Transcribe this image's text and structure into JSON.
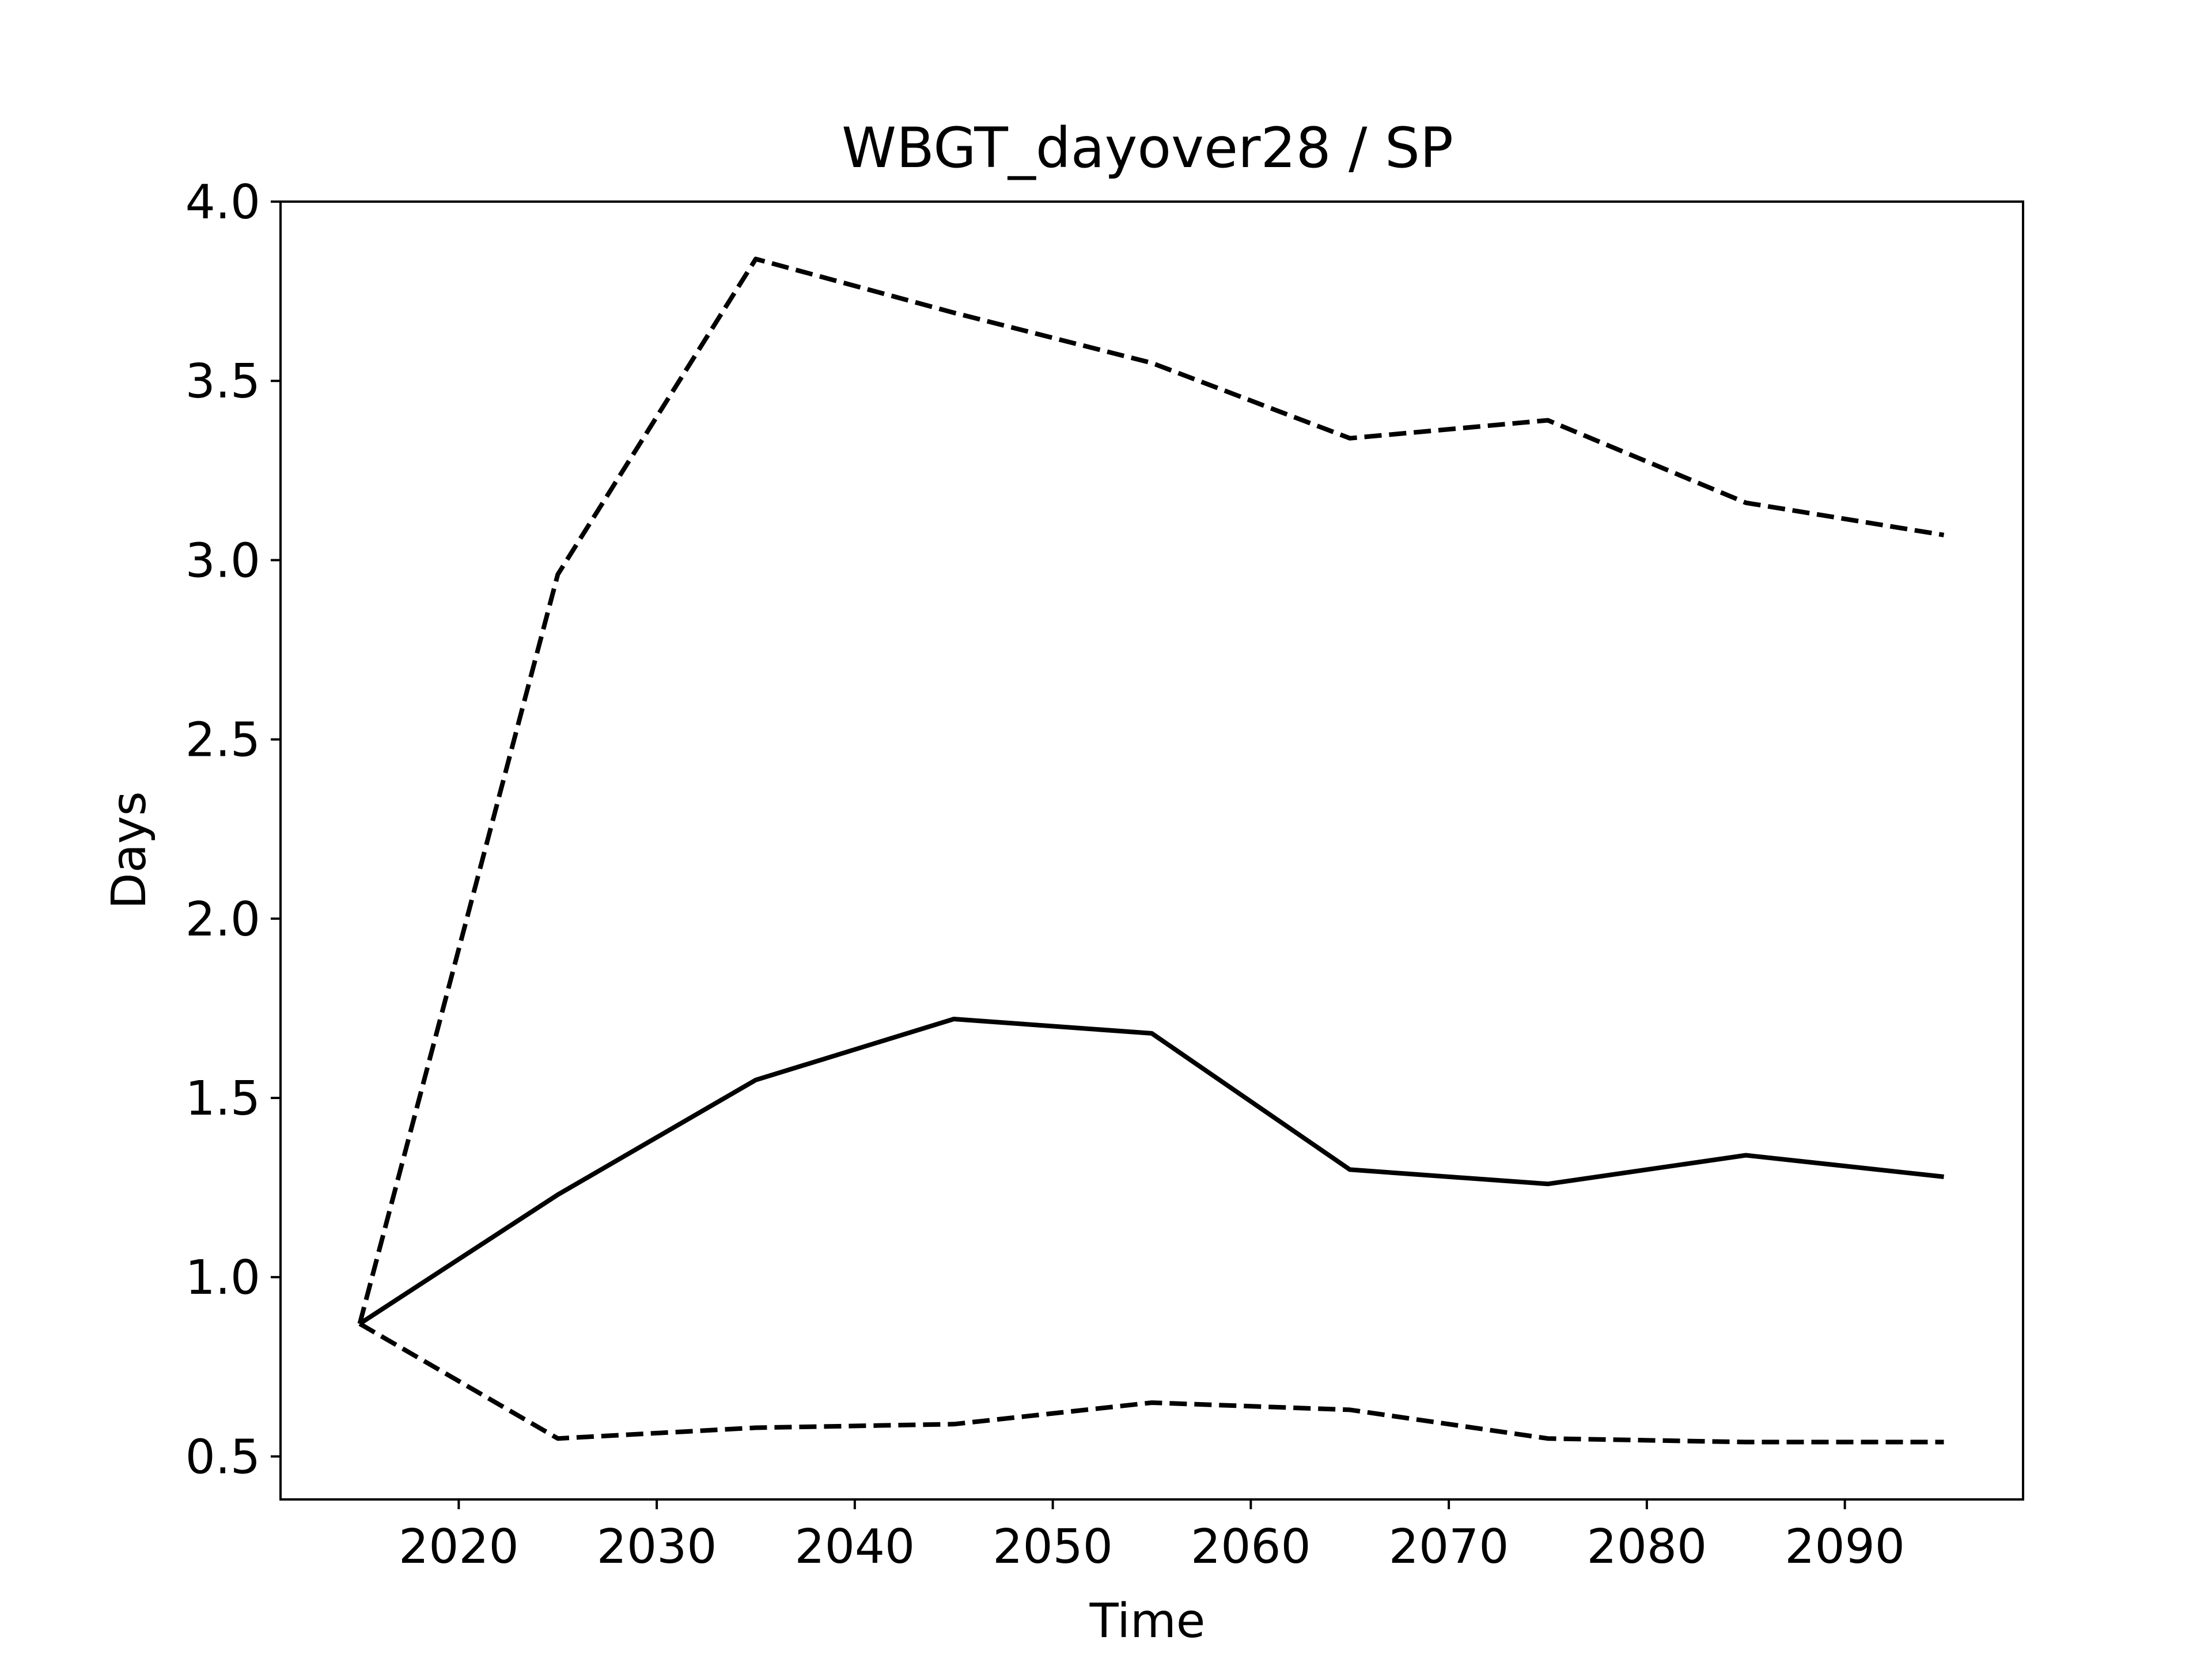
{
  "chart_data": {
    "type": "line",
    "title": "WBGT_dayover28 / SP",
    "xlabel": "Time",
    "ylabel": "Days",
    "xlim": [
      2011,
      2099
    ],
    "ylim": [
      0.38,
      4.0
    ],
    "xticks": [
      2020,
      2030,
      2040,
      2050,
      2060,
      2070,
      2080,
      2090
    ],
    "yticks": [
      0.5,
      1.0,
      1.5,
      2.0,
      2.5,
      3.0,
      3.5,
      4.0
    ],
    "ytick_labels": [
      "0.5",
      "1.0",
      "1.5",
      "2.0",
      "2.5",
      "3.0",
      "3.5",
      "4.0"
    ],
    "grid": false,
    "x": [
      2015,
      2025,
      2035,
      2045,
      2055,
      2065,
      2075,
      2085,
      2095
    ],
    "series": [
      {
        "style": "dashed",
        "color": "#000000",
        "values": [
          0.87,
          2.96,
          3.84,
          3.69,
          3.55,
          3.34,
          3.39,
          3.16,
          3.07
        ]
      },
      {
        "style": "solid",
        "color": "#000000",
        "values": [
          0.87,
          1.23,
          1.55,
          1.72,
          1.68,
          1.3,
          1.26,
          1.34,
          1.28
        ]
      },
      {
        "style": "dashed",
        "color": "#000000",
        "values": [
          0.87,
          0.55,
          0.58,
          0.59,
          0.65,
          0.63,
          0.55,
          0.54,
          0.54
        ]
      }
    ]
  }
}
